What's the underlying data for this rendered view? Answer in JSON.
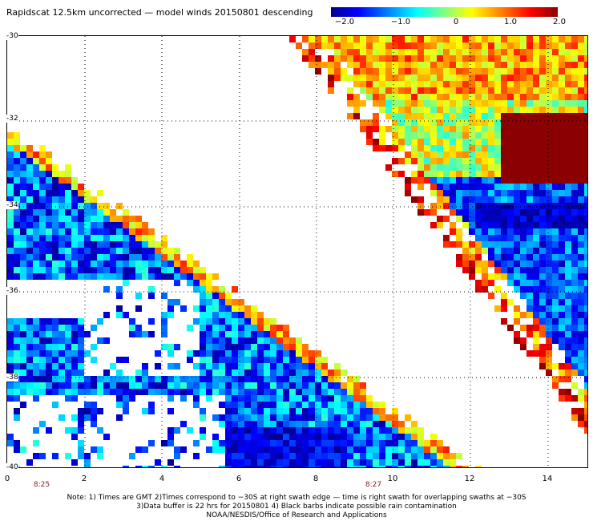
{
  "title": "Rapidscat 12.5km uncorrected — model winds 20150801 descending",
  "colorbar": {
    "ticks": [
      {
        "label": "−2.0",
        "value": -2.0
      },
      {
        "label": "−1.0",
        "value": -1.0
      },
      {
        "label": "0",
        "value": 0
      },
      {
        "label": "1.0",
        "value": 1.0
      },
      {
        "label": "2.0",
        "value": 2.0
      }
    ],
    "colors": [
      "#00008b",
      "#0000ff",
      "#0080ff",
      "#00ffff",
      "#80ff80",
      "#ffff00",
      "#ff8000",
      "#ff0000",
      "#8b0000"
    ],
    "range": [
      -2.0,
      2.0
    ]
  },
  "map": {
    "y_axis_labels": [
      "-30",
      "-32",
      "-34",
      "-36",
      "-38",
      "-40"
    ],
    "x_axis_labels": [
      "0",
      "2",
      "4",
      "6",
      "8",
      "10",
      "12",
      "14"
    ],
    "time_labels": [
      "8:25",
      "8:27"
    ],
    "gridlines": "dotted",
    "missing_color": "#ffffff"
  },
  "notes": [
    "Note: 1) Times are GMT 2)Times correspond to −30S at right swath edge — time is right swath for overlapping swaths at −30S",
    "3)Data buffer is 22 hrs for 20150801 4) Black barbs indicate possible rain contamination",
    "NOAA/NESDIS/Office of Research and Applications"
  ]
}
